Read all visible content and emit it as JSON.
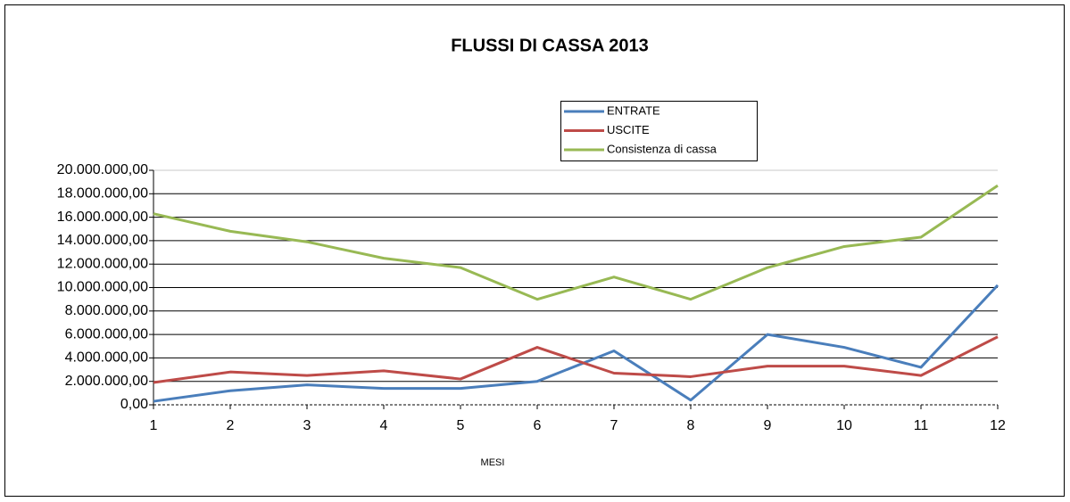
{
  "chart_data": {
    "type": "line",
    "title": "FLUSSI DI CASSA 2013",
    "xlabel": "MESI",
    "x": [
      1,
      2,
      3,
      4,
      5,
      6,
      7,
      8,
      9,
      10,
      11,
      12
    ],
    "xlim": [
      1,
      12
    ],
    "xticks": [
      1,
      2,
      3,
      4,
      5,
      6,
      7,
      8,
      9,
      10,
      11,
      12
    ],
    "ylim": [
      0,
      20000000
    ],
    "yticks": [
      {
        "value": 0,
        "label": "0,00"
      },
      {
        "value": 2000000,
        "label": "2.000.000,00"
      },
      {
        "value": 4000000,
        "label": "4.000.000,00"
      },
      {
        "value": 6000000,
        "label": "6.000.000,00"
      },
      {
        "value": 8000000,
        "label": "8.000.000,00"
      },
      {
        "value": 10000000,
        "label": "10.000.000,00"
      },
      {
        "value": 12000000,
        "label": "12.000.000,00"
      },
      {
        "value": 14000000,
        "label": "14.000.000,00"
      },
      {
        "value": 16000000,
        "label": "16.000.000,00"
      },
      {
        "value": 18000000,
        "label": "18.000.000,00"
      },
      {
        "value": 20000000,
        "label": "20.000.000,00"
      }
    ],
    "grid": true,
    "legend": "top",
    "series": [
      {
        "name": "ENTRATE",
        "color": "#4a7ebb",
        "values": [
          300000,
          1200000,
          1700000,
          1400000,
          1400000,
          2000000,
          4600000,
          400000,
          6000000,
          4900000,
          3200000,
          10200000
        ]
      },
      {
        "name": "USCITE",
        "color": "#be4b48",
        "values": [
          1900000,
          2800000,
          2500000,
          2900000,
          2200000,
          4900000,
          2700000,
          2400000,
          3300000,
          3300000,
          2500000,
          5800000
        ]
      },
      {
        "name": "Consistenza di cassa",
        "color": "#98b954",
        "values": [
          16300000,
          14800000,
          13900000,
          12500000,
          11700000,
          9000000,
          10900000,
          9000000,
          11700000,
          13500000,
          14300000,
          18700000
        ]
      }
    ]
  }
}
